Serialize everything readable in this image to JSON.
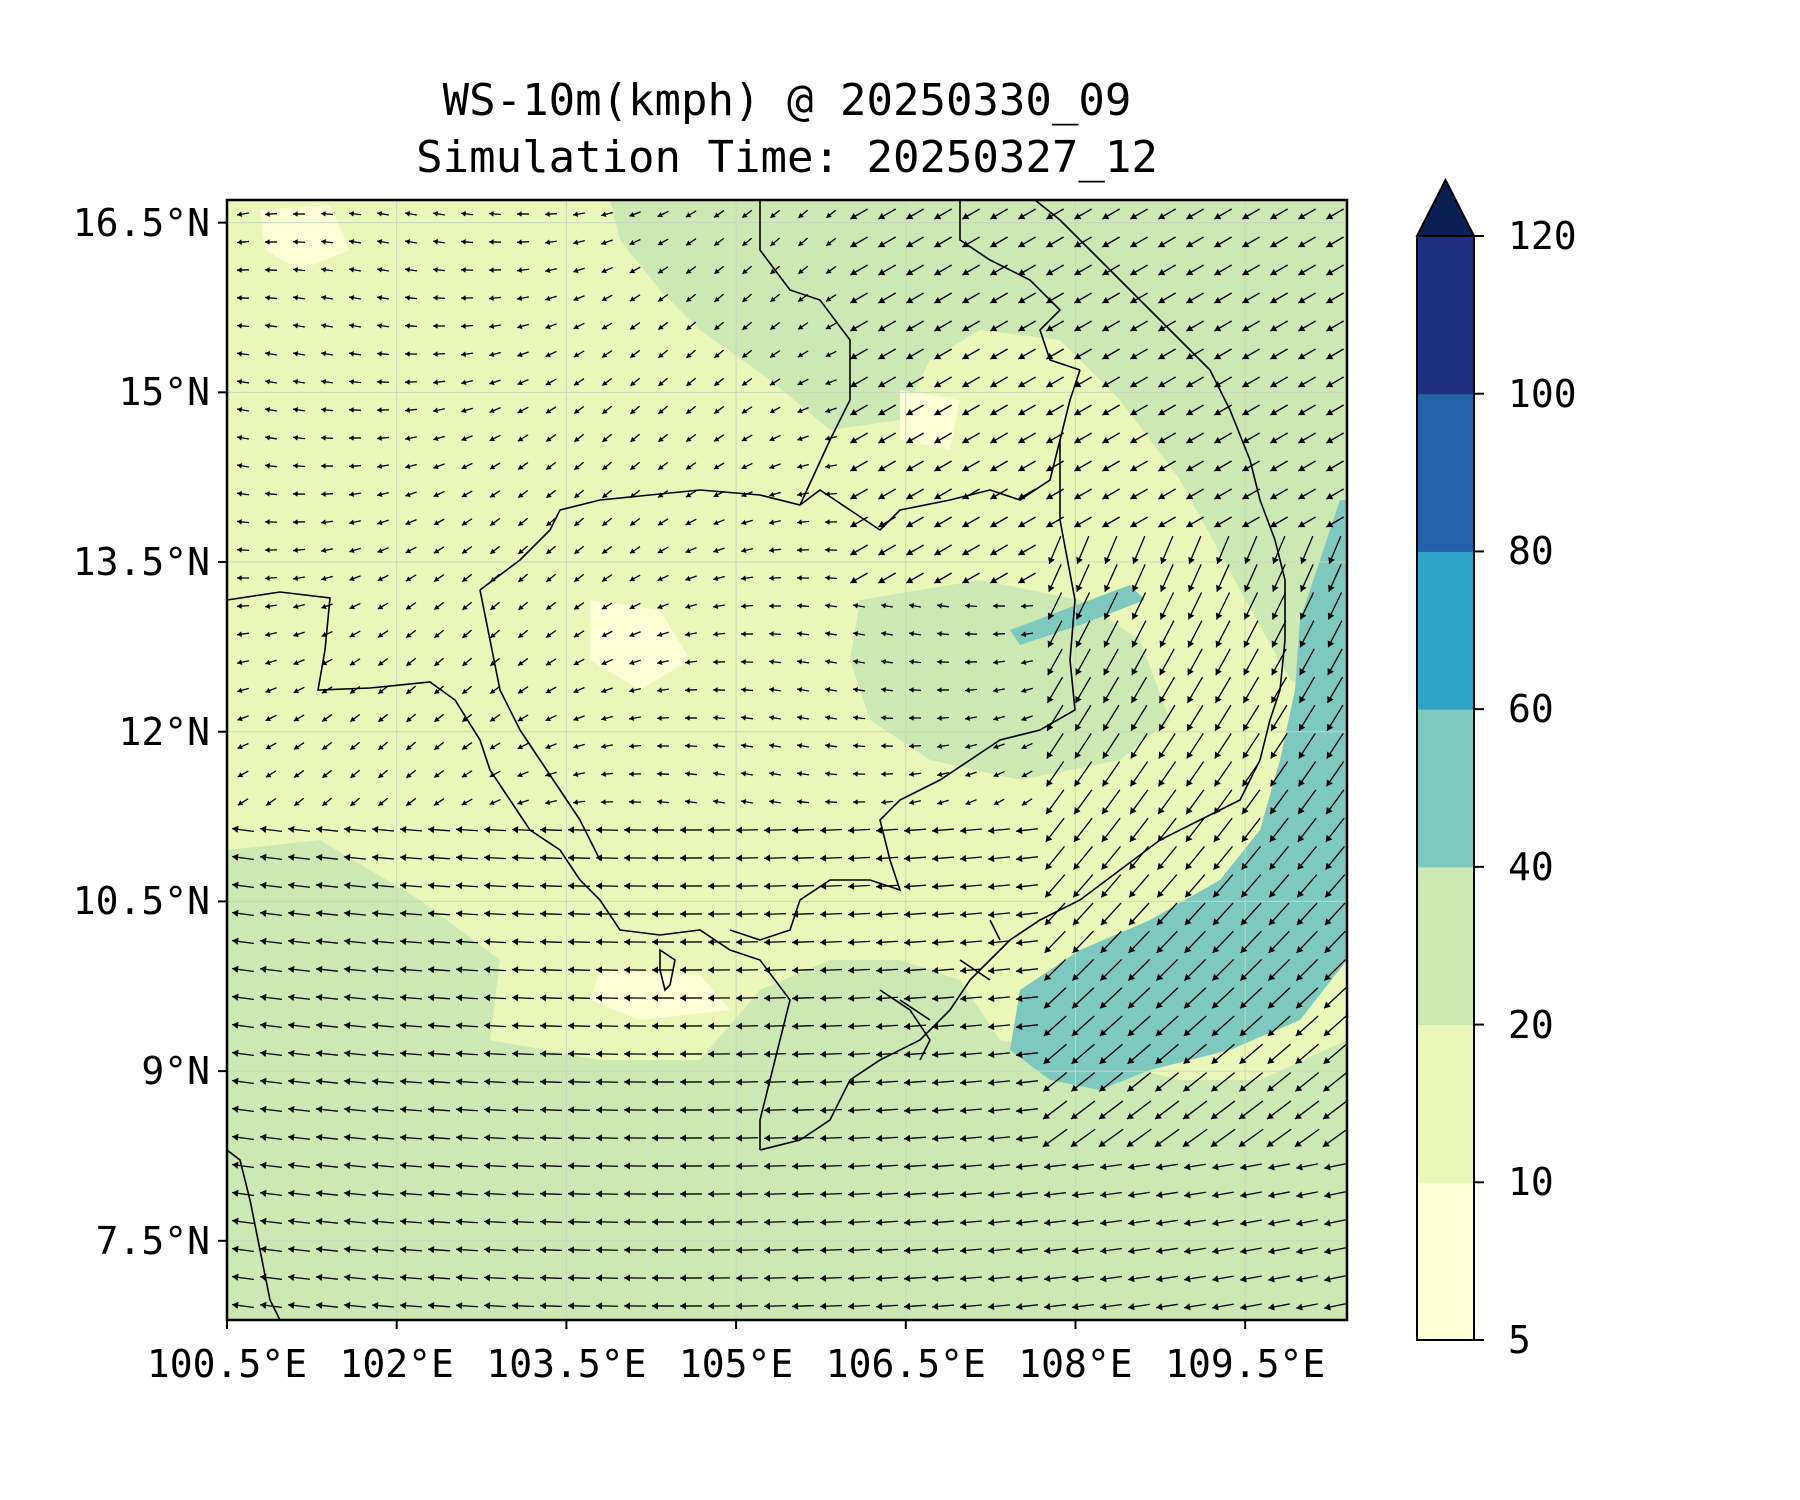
{
  "title": {
    "line1": "WS-10m(kmph) @ 20250330_09",
    "line2": "Simulation Time: 20250327_12"
  },
  "map": {
    "extent": {
      "lon_min": 100.5,
      "lon_max": 110.4,
      "lat_min": 6.8,
      "lat_max": 16.7
    },
    "lat_ticks": [
      {
        "value": 16.5,
        "label": "16.5°N"
      },
      {
        "value": 15,
        "label": "15°N"
      },
      {
        "value": 13.5,
        "label": "13.5°N"
      },
      {
        "value": 12,
        "label": "12°N"
      },
      {
        "value": 10.5,
        "label": "10.5°N"
      },
      {
        "value": 9,
        "label": "9°N"
      },
      {
        "value": 7.5,
        "label": "7.5°N"
      }
    ],
    "lon_ticks": [
      {
        "value": 100.5,
        "label": "100.5°E"
      },
      {
        "value": 102,
        "label": "102°E"
      },
      {
        "value": 103.5,
        "label": "103.5°E"
      },
      {
        "value": 105,
        "label": "105°E"
      },
      {
        "value": 106.5,
        "label": "106.5°E"
      },
      {
        "value": 108,
        "label": "108°E"
      },
      {
        "value": 109.5,
        "label": "109.5°E"
      }
    ],
    "gridlines": true,
    "wind_vectors": true
  },
  "colorbar": {
    "levels": [
      5,
      10,
      20,
      40,
      60,
      80,
      100,
      120
    ],
    "labels": [
      "5",
      "10",
      "20",
      "40",
      "60",
      "80",
      "100",
      "120"
    ],
    "colors": [
      "#fdfed5",
      "#ebf7b8",
      "#cce9b4",
      "#7dc8bf",
      "#2fa2c7",
      "#2263a8",
      "#1e2e81"
    ],
    "extend_color": "#0c1f55",
    "extend": "max"
  },
  "colors": {
    "land_base": "#ebf7b8",
    "calm": "#fdfed5",
    "moderate": "#cce9b4",
    "strong": "#7dc8bf",
    "border": "#000000",
    "arrow": "#000000"
  }
}
